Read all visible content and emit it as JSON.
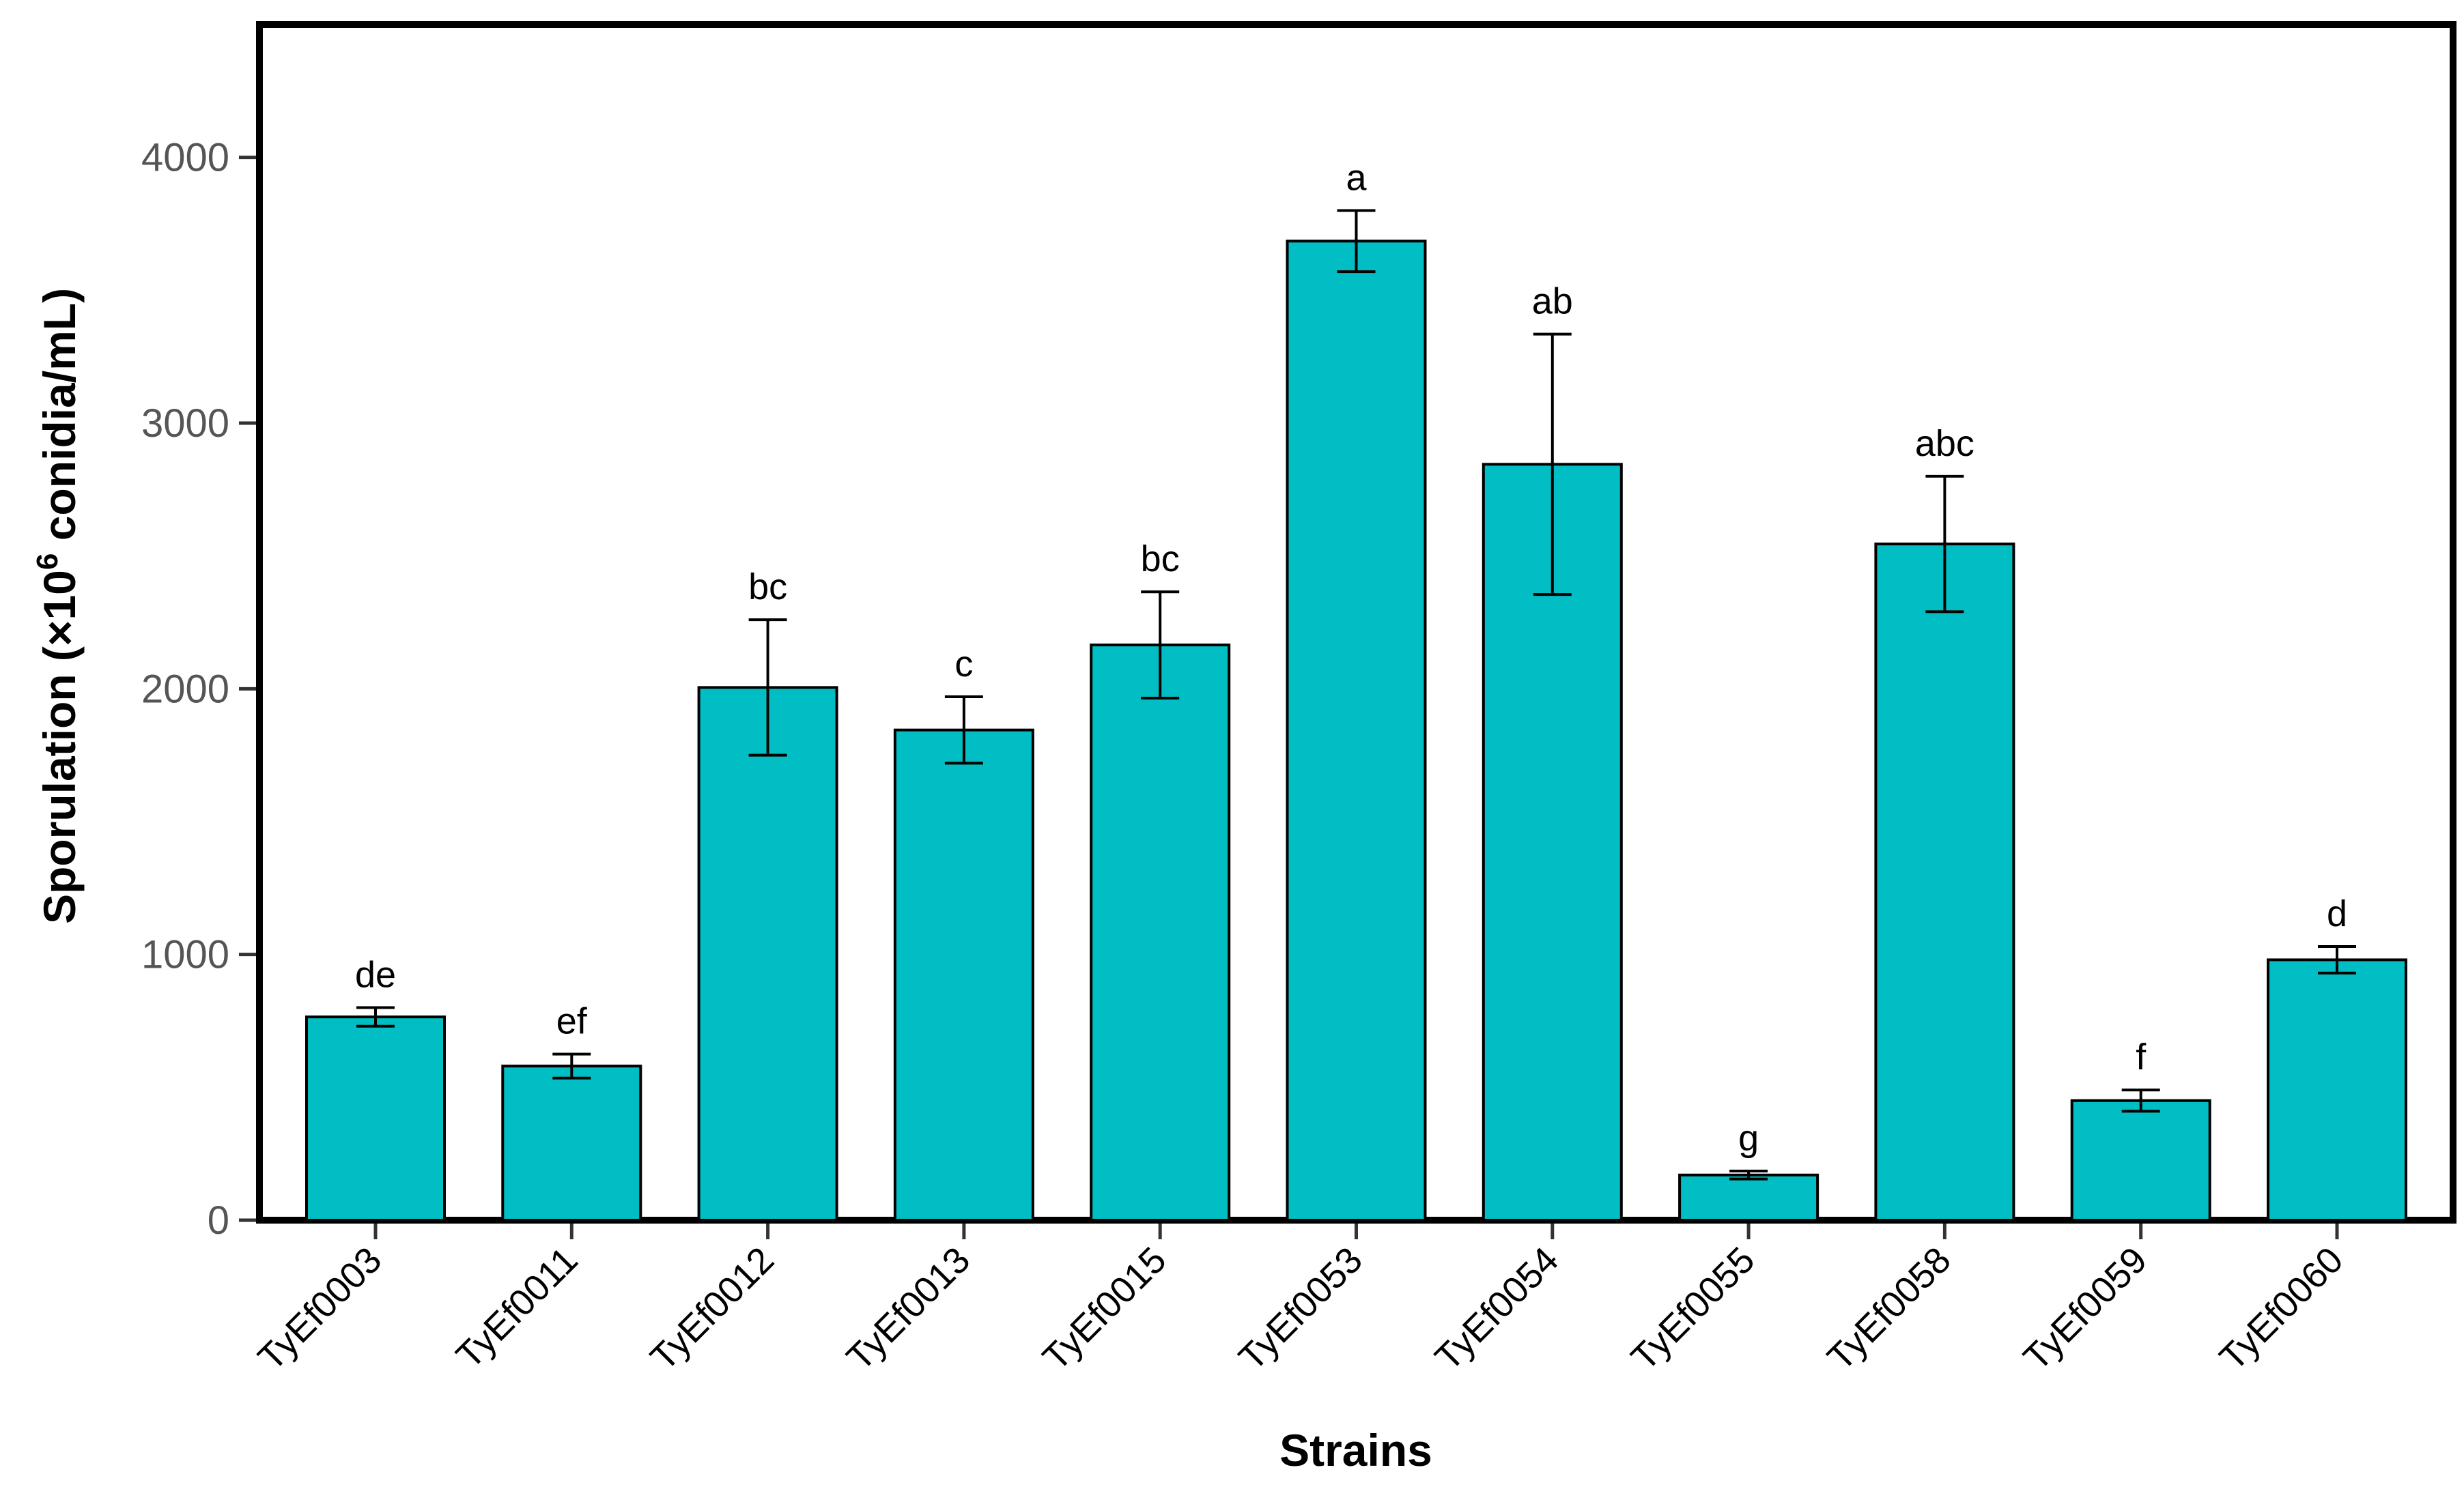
{
  "chart_data": {
    "type": "bar",
    "title": "",
    "xlabel": "Strains",
    "ylabel": "Sporulation (×10",
    "ylabel_superscript": "6",
    "ylabel_suffix": " conidia/mL)",
    "ylim": [
      0,
      4500
    ],
    "yticks": [
      "0",
      "1000",
      "2000",
      "3000",
      "4000"
    ],
    "ytick_values": [
      0,
      1000,
      2000,
      3000,
      4000
    ],
    "categories": [
      "TyEf0003",
      "TyEf0011",
      "TyEf0012",
      "TyEf0013",
      "TyEf0015",
      "TyEf0053",
      "TyEf0054",
      "TyEf0055",
      "TyEf0058",
      "TyEf0059",
      "TyEf0060"
    ],
    "values": [
      765,
      580,
      2005,
      1845,
      2165,
      3685,
      2845,
      170,
      2545,
      450,
      980
    ],
    "errors": [
      35,
      45,
      255,
      125,
      200,
      115,
      490,
      15,
      255,
      40,
      50
    ],
    "significance_letters": [
      "de",
      "ef",
      "bc",
      "c",
      "bc",
      "a",
      "ab",
      "g",
      "abc",
      "f",
      "d"
    ],
    "bar_color": "#00BEC3",
    "grid": false,
    "legend": "none"
  }
}
